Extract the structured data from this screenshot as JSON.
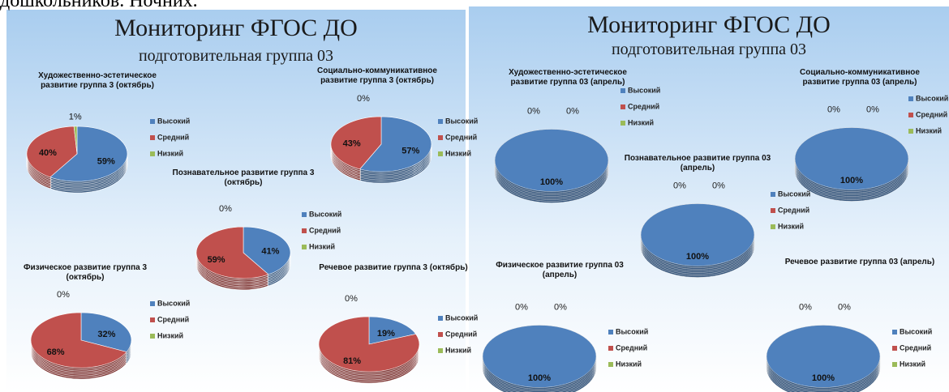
{
  "caption": "дошкольников. Ночних.",
  "slides": [
    {
      "title": "Мониторинг ФГОС ДО",
      "subtitle": "подготовительная группа 03"
    },
    {
      "title": "Мониторинг ФГОС ДО",
      "subtitle": "подготовительная группа 03"
    }
  ],
  "chart_data": [
    {
      "type": "pie",
      "title": "Художественно-эстетическое развитие группа 3 (октябрь)",
      "categories": [
        "Высокий",
        "Средний",
        "Низкий"
      ],
      "values": [
        59,
        40,
        1
      ],
      "value_labels": [
        "59%",
        "40%",
        "1%"
      ],
      "colors": [
        "#4f81bd",
        "#c0504d",
        "#9bbb59"
      ]
    },
    {
      "type": "pie",
      "title": "Социально-коммуникативное развитие группа 3 (октябрь)",
      "categories": [
        "Высокий",
        "Средний",
        "Низкий"
      ],
      "values": [
        57,
        43,
        0
      ],
      "value_labels": [
        "57%",
        "43%",
        "0%"
      ],
      "colors": [
        "#4f81bd",
        "#c0504d",
        "#9bbb59"
      ]
    },
    {
      "type": "pie",
      "title": "Познавательное развитие группа 3 (октябрь)",
      "categories": [
        "Высокий",
        "Средний",
        "Низкий"
      ],
      "values": [
        41,
        59,
        0
      ],
      "value_labels": [
        "41%",
        "59%",
        "0%"
      ],
      "colors": [
        "#4f81bd",
        "#c0504d",
        "#9bbb59"
      ]
    },
    {
      "type": "pie",
      "title": "Физическое развитие группа 3 (октябрь)",
      "categories": [
        "Высокий",
        "Средний",
        "Низкий"
      ],
      "values": [
        32,
        68,
        0
      ],
      "value_labels": [
        "32%",
        "68%",
        "0%"
      ],
      "colors": [
        "#4f81bd",
        "#c0504d",
        "#9bbb59"
      ]
    },
    {
      "type": "pie",
      "title": "Речевое развитие группа 3 (октябрь)",
      "categories": [
        "Высокий",
        "Средний",
        "Низкий"
      ],
      "values": [
        19,
        81,
        0
      ],
      "value_labels": [
        "19%",
        "81%",
        "0%"
      ],
      "colors": [
        "#4f81bd",
        "#c0504d",
        "#9bbb59"
      ]
    },
    {
      "type": "pie",
      "title": "Художественно-эстетическое развитие группа 03 (апрель)",
      "categories": [
        "Высокий",
        "Средний",
        "Низкий"
      ],
      "values": [
        100,
        0,
        0
      ],
      "value_labels": [
        "100%",
        "0%",
        "0%"
      ],
      "colors": [
        "#4f81bd",
        "#c0504d",
        "#9bbb59"
      ]
    },
    {
      "type": "pie",
      "title": "Социально-коммуникативное развитие группа 03 (апрель)",
      "categories": [
        "Высокий",
        "Средний",
        "Низкий"
      ],
      "values": [
        100,
        0,
        0
      ],
      "value_labels": [
        "100%",
        "0%",
        "0%"
      ],
      "colors": [
        "#4f81bd",
        "#c0504d",
        "#9bbb59"
      ]
    },
    {
      "type": "pie",
      "title": "Познавательное развитие группа 03 (апрель)",
      "categories": [
        "Высокий",
        "Средний",
        "Низкий"
      ],
      "values": [
        100,
        0,
        0
      ],
      "value_labels": [
        "100%",
        "0%",
        "0%"
      ],
      "colors": [
        "#4f81bd",
        "#c0504d",
        "#9bbb59"
      ]
    },
    {
      "type": "pie",
      "title": "Физическое развитие группа 03 (апрель)",
      "categories": [
        "Высокий",
        "Средний",
        "Низкий"
      ],
      "values": [
        100,
        0,
        0
      ],
      "value_labels": [
        "100%",
        "0%",
        "0%"
      ],
      "colors": [
        "#4f81bd",
        "#c0504d",
        "#9bbb59"
      ]
    },
    {
      "type": "pie",
      "title": "Речевое развитие группа 03 (апрель)",
      "categories": [
        "Высокий",
        "Средний",
        "Низкий"
      ],
      "values": [
        100,
        0,
        0
      ],
      "value_labels": [
        "100%",
        "0%",
        "0%"
      ],
      "colors": [
        "#4f81bd",
        "#c0504d",
        "#9bbb59"
      ]
    }
  ]
}
